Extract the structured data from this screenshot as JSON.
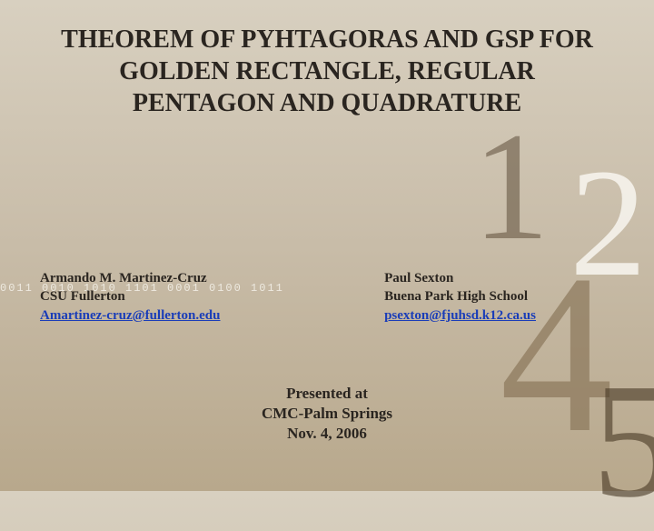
{
  "title": "THEOREM OF PYHTAGORAS AND GSP FOR GOLDEN RECTANGLE, REGULAR PENTAGON AND QUADRATURE",
  "binary_deco": "0011 0010 1010 1101 0001 0100 1011",
  "author_left": {
    "name": "Armando M. Martinez-Cruz",
    "affiliation": "CSU Fullerton",
    "email": "Amartinez-cruz@fullerton.edu"
  },
  "author_right": {
    "name": "Paul Sexton",
    "affiliation": "Buena Park High School",
    "email": "psexton@fjuhsd.k12.ca.us"
  },
  "presented": {
    "line1": "Presented at",
    "line2": "CMC-Palm Springs",
    "line3": "Nov. 4, 2006"
  },
  "bg_numbers": {
    "n1": "1",
    "n2": "2",
    "n4": "4",
    "n5": "5"
  }
}
